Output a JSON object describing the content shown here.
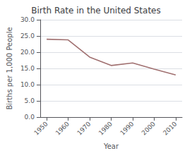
{
  "chart_data": {
    "type": "line",
    "title": "Birth Rate in the United States",
    "xlabel": "Year",
    "ylabel": "Births per 1,000 People",
    "x": [
      1950,
      1960,
      1970,
      1980,
      1990,
      2000,
      2010
    ],
    "values": [
      24.0,
      23.8,
      18.5,
      15.9,
      16.7,
      14.8,
      13.0
    ],
    "color": "#a07070",
    "xlim": [
      1947,
      2013
    ],
    "xticks": [
      1950,
      1960,
      1970,
      1980,
      1990,
      2000,
      2010
    ],
    "ylim": [
      0.0,
      30.0
    ],
    "yticks": [
      {
        "value": 0,
        "label": "0.0"
      },
      {
        "value": 5,
        "label": "5.0"
      },
      {
        "value": 10,
        "label": "10.0"
      },
      {
        "value": 15,
        "label": "15.0"
      },
      {
        "value": 20,
        "label": "20.0"
      },
      {
        "value": 25,
        "label": "25.0"
      },
      {
        "value": 30,
        "label": "30.0"
      }
    ],
    "grid": true
  }
}
